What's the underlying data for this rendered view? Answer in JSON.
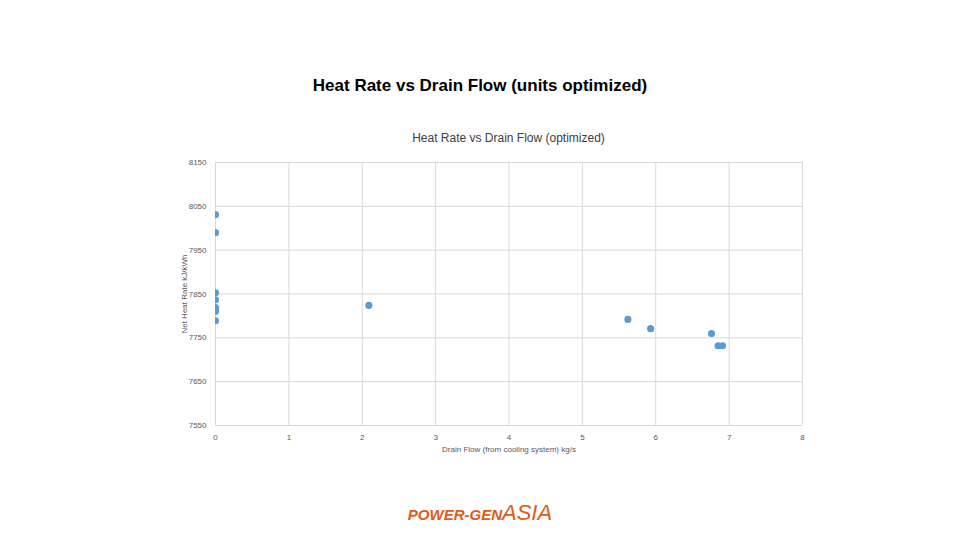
{
  "chart_data": {
    "type": "scatter",
    "title": "Heat Rate vs Drain Flow (units optimized)",
    "subtitle": "Heat Rate vs Drain Flow (optimized)",
    "x_label": "Drain Flow (from cooling system) kg/s",
    "y_label": "Net Heat Rate kJ/kWh",
    "x": [
      0,
      0,
      0,
      0,
      0,
      0,
      0,
      0,
      2.09,
      5.62,
      5.93,
      6.76,
      6.85,
      6.91
    ],
    "values": [
      8031,
      7990,
      7853,
      7837,
      7819,
      7814,
      7810,
      7789,
      7824,
      7792,
      7771,
      7760,
      7732,
      7732
    ],
    "color": "#5b9bd5",
    "marker": "circle",
    "xlim": [
      0,
      8
    ],
    "xticks": [
      0,
      1,
      2,
      3,
      4,
      5,
      6,
      7,
      8
    ],
    "ylim": [
      7550,
      8150
    ],
    "yticks": [
      7550,
      7650,
      7750,
      7850,
      7950,
      8050,
      8150
    ],
    "grid": true,
    "annotations": [
      "POWER-GEN",
      "ASIA"
    ]
  }
}
